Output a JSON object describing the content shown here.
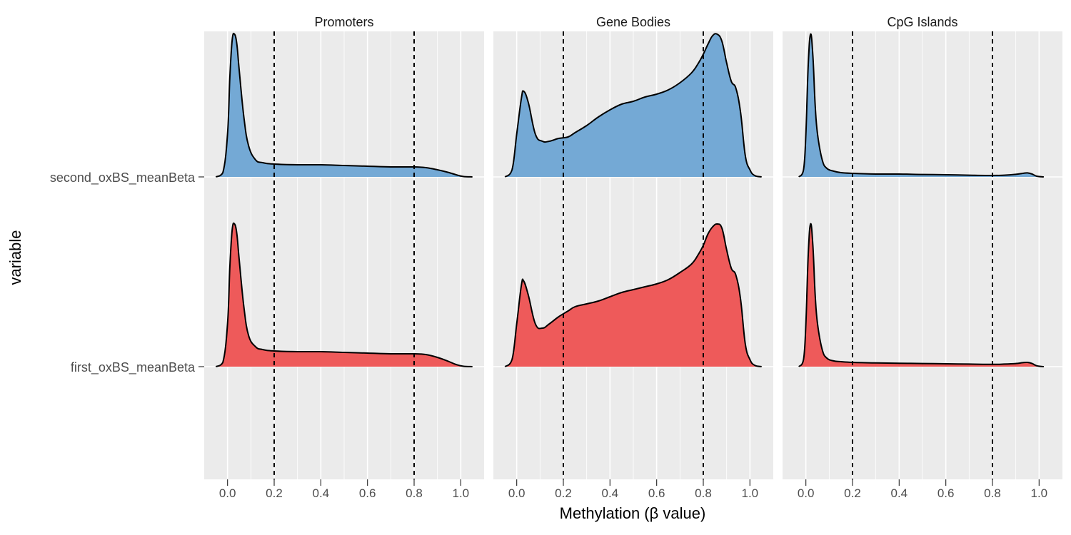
{
  "chart_data": {
    "type": "area",
    "subtype": "ridgeline-density",
    "xlabel": "Methylation (β value)",
    "ylabel": "variable",
    "xlim": [
      -0.1,
      1.1
    ],
    "x_ticks": [
      0.0,
      0.2,
      0.4,
      0.6,
      0.8,
      1.0
    ],
    "x_tick_labels": [
      "0.0",
      "0.2",
      "0.4",
      "0.6",
      "0.8",
      "1.0"
    ],
    "vlines": [
      0.2,
      0.8
    ],
    "grid": true,
    "legend": "none",
    "categories": [
      "second_oxBS_meanBeta",
      "first_oxBS_meanBeta"
    ],
    "colors": {
      "second_oxBS_meanBeta": "#74A9D5",
      "first_oxBS_meanBeta": "#EE5A5A",
      "panel_background": "#EBEBEB",
      "grid": "#FFFFFF",
      "outline": "#000000"
    },
    "panels": [
      {
        "title": "Promoters",
        "series": [
          {
            "name": "second_oxBS_meanBeta",
            "x": [
              -0.05,
              -0.02,
              0.0,
              0.01,
              0.02,
              0.03,
              0.04,
              0.05,
              0.07,
              0.09,
              0.12,
              0.15,
              0.2,
              0.3,
              0.4,
              0.5,
              0.6,
              0.7,
              0.8,
              0.85,
              0.9,
              0.95,
              0.98,
              1.01,
              1.05
            ],
            "density": [
              0.0,
              0.03,
              0.3,
              0.7,
              0.96,
              1.0,
              0.93,
              0.75,
              0.42,
              0.22,
              0.12,
              0.1,
              0.09,
              0.085,
              0.085,
              0.08,
              0.075,
              0.07,
              0.07,
              0.065,
              0.05,
              0.03,
              0.015,
              0.003,
              0.0
            ]
          },
          {
            "name": "first_oxBS_meanBeta",
            "x": [
              -0.05,
              -0.02,
              0.0,
              0.01,
              0.02,
              0.03,
              0.04,
              0.05,
              0.07,
              0.09,
              0.12,
              0.15,
              0.2,
              0.3,
              0.4,
              0.5,
              0.6,
              0.7,
              0.8,
              0.85,
              0.9,
              0.95,
              0.98,
              1.01,
              1.05
            ],
            "density": [
              0.0,
              0.03,
              0.3,
              0.7,
              0.96,
              1.0,
              0.93,
              0.75,
              0.42,
              0.22,
              0.14,
              0.12,
              0.11,
              0.105,
              0.105,
              0.1,
              0.095,
              0.09,
              0.09,
              0.085,
              0.065,
              0.035,
              0.015,
              0.003,
              0.0
            ]
          }
        ]
      },
      {
        "title": "Gene Bodies",
        "series": [
          {
            "name": "second_oxBS_meanBeta",
            "x": [
              -0.05,
              -0.02,
              0.0,
              0.02,
              0.03,
              0.05,
              0.08,
              0.11,
              0.14,
              0.18,
              0.22,
              0.25,
              0.3,
              0.35,
              0.4,
              0.45,
              0.5,
              0.55,
              0.6,
              0.65,
              0.7,
              0.75,
              0.78,
              0.8,
              0.82,
              0.84,
              0.86,
              0.88,
              0.9,
              0.92,
              0.94,
              0.96,
              0.98,
              1.0,
              1.02,
              1.05
            ],
            "density": [
              0.0,
              0.05,
              0.3,
              0.55,
              0.6,
              0.52,
              0.3,
              0.25,
              0.25,
              0.27,
              0.28,
              0.31,
              0.36,
              0.42,
              0.47,
              0.51,
              0.53,
              0.56,
              0.58,
              0.61,
              0.66,
              0.73,
              0.8,
              0.86,
              0.93,
              0.99,
              1.0,
              0.95,
              0.8,
              0.67,
              0.62,
              0.45,
              0.15,
              0.05,
              0.01,
              0.0
            ]
          },
          {
            "name": "first_oxBS_meanBeta",
            "x": [
              -0.05,
              -0.02,
              0.0,
              0.02,
              0.03,
              0.05,
              0.08,
              0.11,
              0.14,
              0.18,
              0.22,
              0.25,
              0.3,
              0.35,
              0.4,
              0.45,
              0.5,
              0.55,
              0.6,
              0.65,
              0.7,
              0.75,
              0.78,
              0.8,
              0.82,
              0.84,
              0.86,
              0.88,
              0.9,
              0.92,
              0.94,
              0.96,
              0.98,
              1.0,
              1.02,
              1.05
            ],
            "density": [
              0.0,
              0.05,
              0.3,
              0.57,
              0.6,
              0.5,
              0.3,
              0.27,
              0.3,
              0.35,
              0.39,
              0.42,
              0.44,
              0.46,
              0.49,
              0.52,
              0.54,
              0.56,
              0.58,
              0.61,
              0.66,
              0.72,
              0.79,
              0.85,
              0.93,
              0.98,
              1.0,
              0.97,
              0.82,
              0.69,
              0.64,
              0.47,
              0.16,
              0.05,
              0.01,
              0.0
            ]
          }
        ]
      },
      {
        "title": "CpG Islands",
        "series": [
          {
            "name": "second_oxBS_meanBeta",
            "x": [
              -0.03,
              -0.01,
              0.0,
              0.01,
              0.02,
              0.03,
              0.04,
              0.05,
              0.07,
              0.09,
              0.12,
              0.15,
              0.2,
              0.3,
              0.4,
              0.5,
              0.6,
              0.7,
              0.8,
              0.85,
              0.9,
              0.93,
              0.95,
              0.97,
              0.99,
              1.02
            ],
            "density": [
              0.0,
              0.05,
              0.3,
              0.78,
              1.0,
              0.85,
              0.5,
              0.3,
              0.12,
              0.06,
              0.04,
              0.03,
              0.025,
              0.02,
              0.02,
              0.017,
              0.015,
              0.012,
              0.01,
              0.012,
              0.018,
              0.025,
              0.028,
              0.02,
              0.005,
              0.0
            ]
          },
          {
            "name": "first_oxBS_meanBeta",
            "x": [
              -0.03,
              -0.01,
              0.0,
              0.01,
              0.02,
              0.03,
              0.04,
              0.05,
              0.07,
              0.09,
              0.12,
              0.15,
              0.2,
              0.3,
              0.4,
              0.5,
              0.6,
              0.7,
              0.8,
              0.85,
              0.9,
              0.93,
              0.95,
              0.97,
              0.99,
              1.02
            ],
            "density": [
              0.0,
              0.05,
              0.3,
              0.78,
              1.0,
              0.85,
              0.5,
              0.3,
              0.12,
              0.06,
              0.04,
              0.035,
              0.03,
              0.026,
              0.024,
              0.022,
              0.02,
              0.018,
              0.016,
              0.018,
              0.022,
              0.028,
              0.03,
              0.022,
              0.006,
              0.0
            ]
          }
        ]
      }
    ]
  }
}
